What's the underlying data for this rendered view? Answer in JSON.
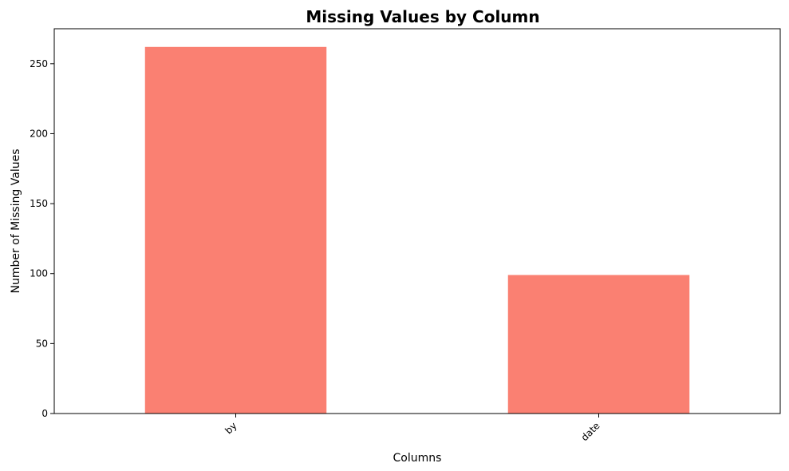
{
  "chart_data": {
    "type": "bar",
    "title": "Missing Values by Column",
    "xlabel": "Columns",
    "ylabel": "Number of Missing Values",
    "categories": [
      "by",
      "date"
    ],
    "values": [
      262,
      99
    ],
    "ylim": [
      0,
      275
    ],
    "yticks": [
      0,
      50,
      100,
      150,
      200,
      250
    ],
    "grid": false,
    "bar_color": "#fa8072",
    "xtick_rotation_deg": 45
  }
}
